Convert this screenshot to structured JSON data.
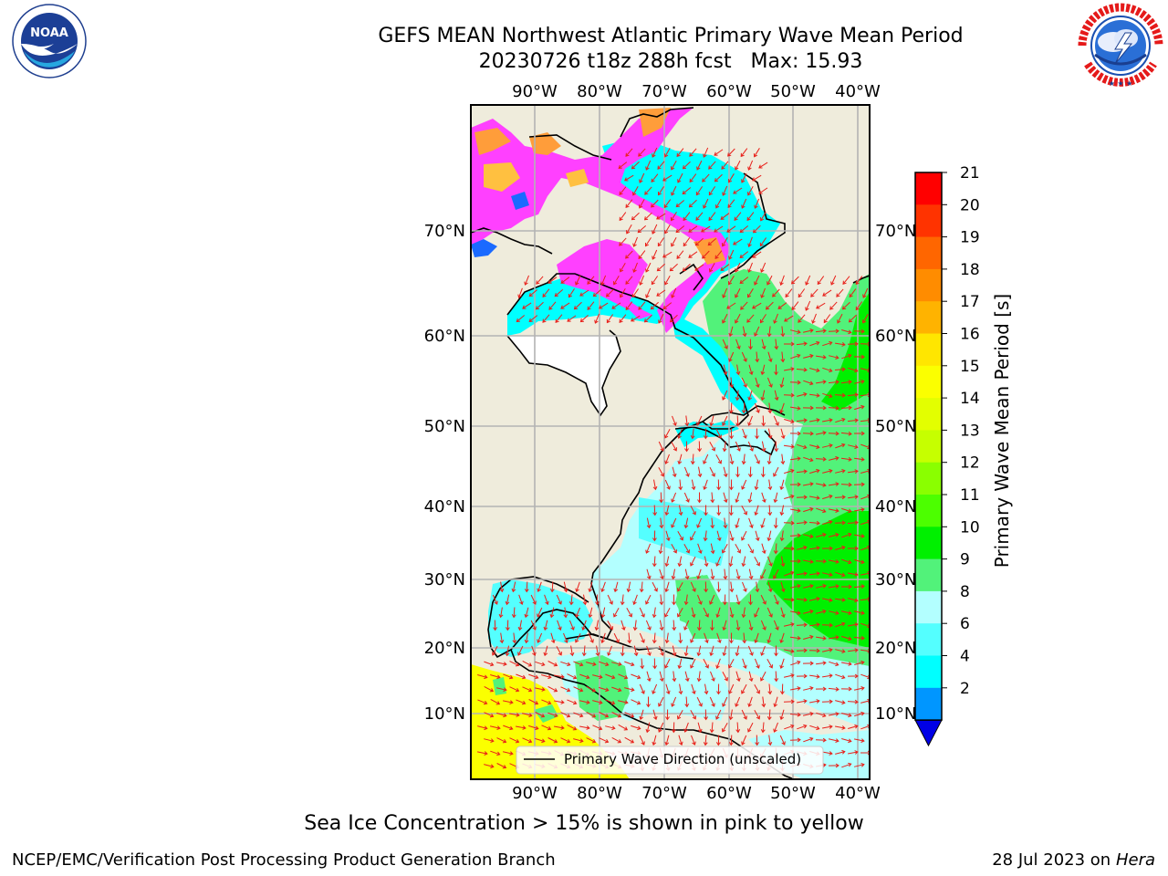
{
  "title": {
    "line1": "GEFS MEAN Northwest Atlantic Primary Wave Mean Period",
    "line2": "20230726 t18z 288h fcst   Max: 15.93"
  },
  "logos": {
    "noaa": {
      "name": "noaa-logo",
      "text": "NOAA",
      "ring_text": "NATIONAL OCEANIC AND ATMOSPHERIC ADMINISTRATION · U.S. DEPARTMENT OF COMMERCE"
    },
    "nws": {
      "name": "nws-logo",
      "ring_text": "NATIONAL WEATHER SERVICE"
    }
  },
  "map": {
    "lon_labels": [
      "90°W",
      "80°W",
      "70°W",
      "60°W",
      "50°W",
      "40°W"
    ],
    "lat_labels": [
      "70°N",
      "60°N",
      "50°N",
      "40°N",
      "30°N",
      "20°N",
      "10°N"
    ],
    "legend_label": "Primary Wave Direction (unscaled)",
    "colors": {
      "land": "#efecdc",
      "frame": "#000000",
      "grid": "#b3b3b3",
      "arrow": "#e8201a"
    }
  },
  "colorbar": {
    "label": "Primary Wave Mean Period [s]",
    "ticks": [
      "21",
      "20",
      "19",
      "18",
      "17",
      "16",
      "15",
      "14",
      "13",
      "12",
      "11",
      "10",
      "9",
      "8",
      "6",
      "4",
      "2"
    ],
    "colors": [
      "#ff0000",
      "#ff3300",
      "#ff6600",
      "#ff8c00",
      "#ffb300",
      "#ffe600",
      "#fbff00",
      "#e3ff00",
      "#c6ff00",
      "#8aff00",
      "#4cff00",
      "#00f000",
      "#52f27a",
      "#b3ffff",
      "#54ffff",
      "#00ffff",
      "#0096ff"
    ],
    "extend_color": "#0000e6"
  },
  "footer": {
    "note": "Sea Ice Concentration > 15% is shown in pink to yellow",
    "left": "NCEP/EMC/Verification Post Processing Product Generation Branch",
    "right_date": "28 Jul 2023 on ",
    "right_machine": "Hera"
  }
}
